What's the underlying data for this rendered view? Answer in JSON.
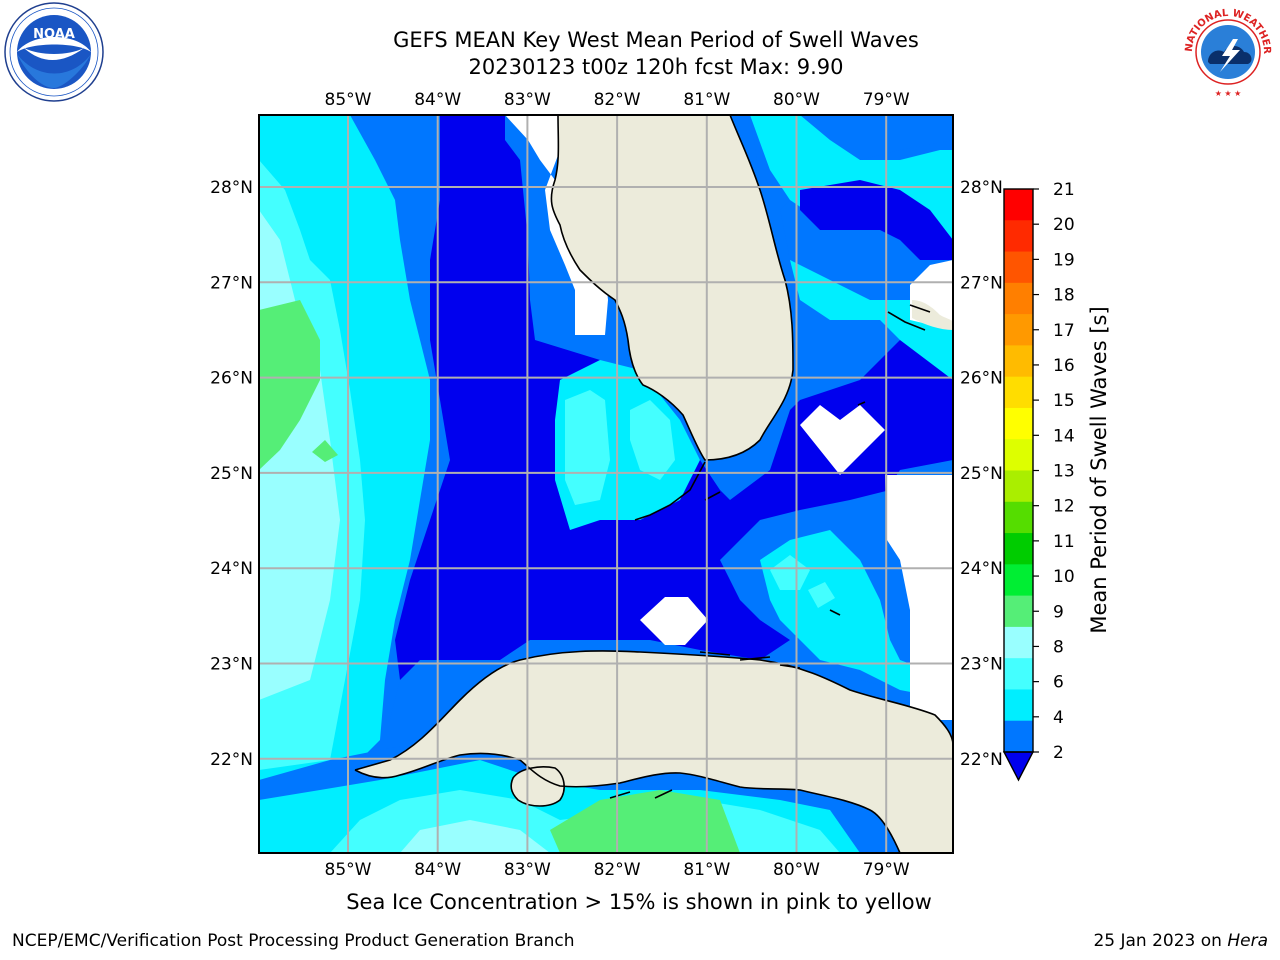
{
  "header": {
    "title": "GEFS MEAN Key West Mean Period of Swell Waves",
    "subtitle": "20230123 t00z 120h fcst   Max: 9.90"
  },
  "map": {
    "lon_labels": [
      "85°W",
      "84°W",
      "83°W",
      "82°W",
      "81°W",
      "80°W",
      "79°W"
    ],
    "lat_labels": [
      "28°N",
      "27°N",
      "26°N",
      "25°N",
      "24°N",
      "23°N",
      "22°N"
    ],
    "colors": {
      "land": "#ecebdb",
      "nodata": "#ffffff",
      "grid": "#b0b0b0",
      "coast": "#000000"
    },
    "levels": [
      {
        "name": "below 2",
        "color": "#0000ee"
      },
      {
        "name": "2-4",
        "color": "#0077ff"
      },
      {
        "name": "4-6",
        "color": "#00eeff"
      },
      {
        "name": "6-8",
        "color": "#44ffff"
      },
      {
        "name": "8-9",
        "color": "#99ffff"
      },
      {
        "name": "9-10",
        "color": "#55ee77"
      }
    ]
  },
  "colorbar": {
    "label": "Mean Period of Swell Waves [s]",
    "ticks": [
      "21",
      "20",
      "19",
      "18",
      "17",
      "16",
      "15",
      "14",
      "13",
      "12",
      "11",
      "10",
      "9",
      "8",
      "6",
      "4",
      "2"
    ],
    "colors": [
      "#ff0000",
      "#ff2a00",
      "#ff5500",
      "#ff7f00",
      "#ff9900",
      "#ffbb00",
      "#ffdd00",
      "#ffff00",
      "#ddff00",
      "#aaee00",
      "#55dd00",
      "#00cc00",
      "#00ee33",
      "#55ee77",
      "#99ffff",
      "#44ffff",
      "#00eeff",
      "#0077ff"
    ],
    "extend_color": "#0000ee"
  },
  "footer": {
    "note": "Sea Ice Concentration > 15% is shown in pink to yellow",
    "left": "NCEP/EMC/Verification Post Processing Product Generation Branch",
    "right_date": "25 Jan 2023 on ",
    "right_machine": "Hera"
  },
  "logos": {
    "noaa": "NOAA",
    "nws": "NATIONAL WEATHER SERVICE"
  }
}
